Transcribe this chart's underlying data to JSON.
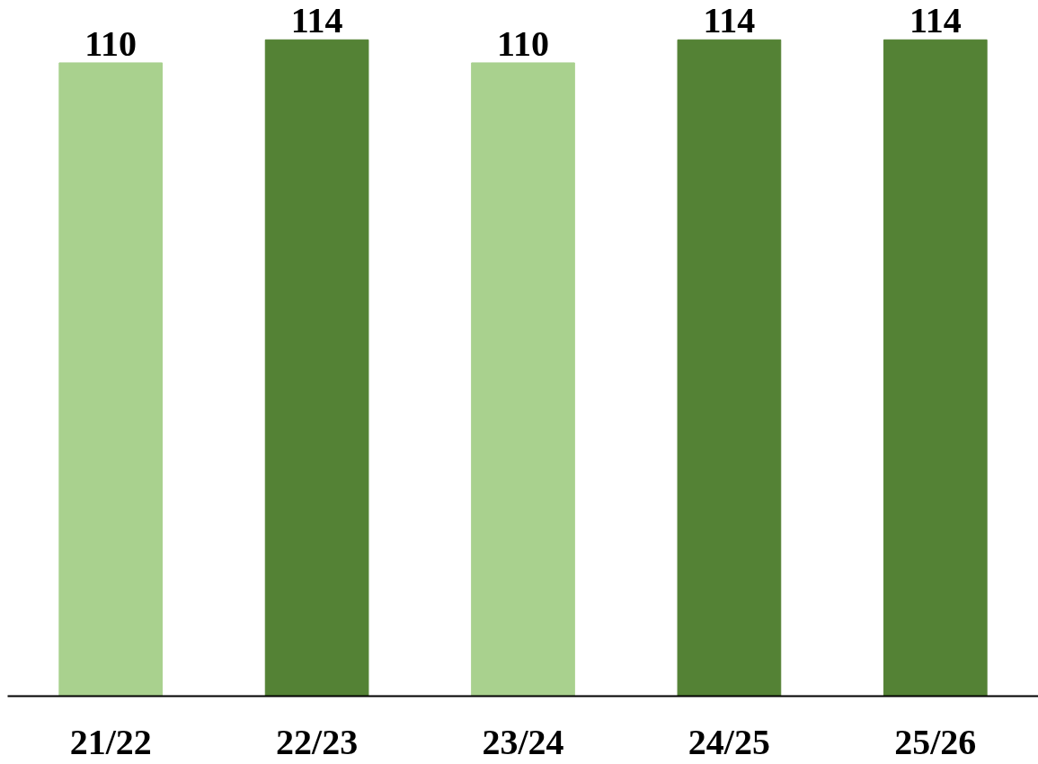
{
  "chart_data": {
    "type": "bar",
    "categories": [
      "21/22",
      "22/23",
      "23/24",
      "24/25",
      "25/26"
    ],
    "values": [
      110,
      114,
      110,
      114,
      114
    ],
    "colors": [
      "#a9d18e",
      "#548235",
      "#a9d18e",
      "#548235",
      "#548235"
    ],
    "tick_labels": "x",
    "data_labels": true
  }
}
